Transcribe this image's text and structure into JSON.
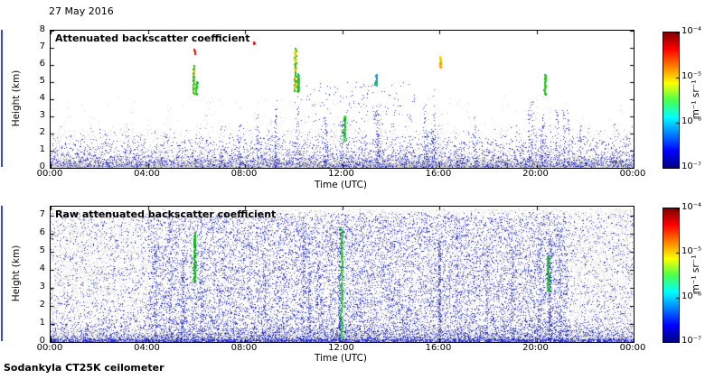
{
  "date_label": "27 May 2016",
  "footer_label": "Sodankyla CT25K ceilometer",
  "colors": {
    "speckle_blue": "#2f38d0",
    "noise_gray": "#c8c8c8",
    "cloud_green": "#19b419",
    "axis_black": "#000000",
    "edge_artifact_blue": "#3a46c8"
  },
  "colormap_stops": [
    {
      "p": 0.0,
      "c": "#000083"
    },
    {
      "p": 0.125,
      "c": "#0000ff"
    },
    {
      "p": 0.375,
      "c": "#00ffff"
    },
    {
      "p": 0.5,
      "c": "#4dff4d"
    },
    {
      "p": 0.625,
      "c": "#ffff00"
    },
    {
      "p": 0.875,
      "c": "#ff0000"
    },
    {
      "p": 1.0,
      "c": "#800000"
    }
  ],
  "chart_data": [
    {
      "type": "scatter",
      "title": "Attenuated backscatter coefficient",
      "xlabel": "Time (UTC)",
      "ylabel": "Height (km)",
      "xlim_hours": [
        0,
        24
      ],
      "x_ticks": [
        "00:00",
        "04:00",
        "08:00",
        "12:00",
        "16:00",
        "20:00",
        "00:00"
      ],
      "ylim_km": [
        0,
        8
      ],
      "y_ticks": [
        0,
        1,
        2,
        3,
        4,
        5,
        6,
        7,
        8
      ],
      "colorbar": {
        "label": "m⁻¹ sr⁻¹",
        "tick_labels": [
          "10⁻⁴",
          "10⁻⁵",
          "10⁻⁶",
          "10⁻⁷"
        ],
        "scale": "log",
        "colormap": "jet"
      },
      "seed": 20160527,
      "layers": [
        {
          "kind": "scatter",
          "n": 9000,
          "t": [
            0,
            24
          ],
          "h": [
            0,
            1.2
          ],
          "dist": "exp",
          "scale": 0.28,
          "colors": [
            "#c8c8c8",
            "#d4d4d4",
            "#bdbdbd"
          ]
        },
        {
          "kind": "scatter",
          "n": 800,
          "t": [
            0,
            24
          ],
          "h": [
            0.8,
            2.3
          ],
          "dist": "uniform",
          "colors": [
            "#cccccc"
          ]
        },
        {
          "kind": "scatter",
          "n": 160,
          "t": [
            0,
            24
          ],
          "h": [
            2.2,
            4.2
          ],
          "dist": "uniform",
          "colors": [
            "#cccccc"
          ]
        },
        {
          "kind": "cols",
          "cols": 24,
          "t": [
            0,
            24
          ],
          "hmax": [
            1.2,
            3.6
          ],
          "per": 22,
          "colors": [
            "#c8c8c8"
          ]
        },
        {
          "kind": "scatter",
          "n": 2800,
          "t": [
            0,
            24
          ],
          "h": [
            0.05,
            2.6
          ],
          "dist": "exp",
          "scale": 0.6,
          "colors": [
            "#2929c8",
            "#3c46dc",
            "#2020aa"
          ]
        },
        {
          "kind": "scatter",
          "n": 600,
          "t": [
            0,
            24
          ],
          "h": [
            0.1,
            1.9
          ],
          "dist": "uniform",
          "colors": [
            "#2c35cf"
          ]
        },
        {
          "kind": "cols",
          "cols": 26,
          "t": [
            7.5,
            21.8
          ],
          "hmax": [
            2.0,
            4.7
          ],
          "per": 26,
          "colors": [
            "#2a30c8",
            "#3a44da"
          ]
        },
        {
          "kind": "scatter",
          "n": 140,
          "t": [
            10,
            15
          ],
          "h": [
            2.5,
            5.0
          ],
          "dist": "uniform",
          "colors": [
            "#2c35cf"
          ]
        }
      ],
      "cloud_streaks": [
        {
          "t_hours": 5.86,
          "h_km": [
            4.35,
            6.05
          ],
          "colors": [
            "#19b419",
            "#8fcc19",
            "#ffd400",
            "#19b419"
          ]
        },
        {
          "t_hours": 5.98,
          "h_km": [
            4.3,
            5.1
          ],
          "colors": [
            "#19b419",
            "#33cc33"
          ]
        },
        {
          "t_hours": 5.9,
          "h_km": [
            6.7,
            6.95
          ],
          "colors": [
            "#d41919"
          ]
        },
        {
          "t_hours": 8.35,
          "h_km": [
            7.25,
            7.42
          ],
          "colors": [
            "#cc1111"
          ]
        },
        {
          "t_hours": 10.04,
          "h_km": [
            4.55,
            7.05
          ],
          "colors": [
            "#2fb419",
            "#c8dc19",
            "#ffc800",
            "#2fb419"
          ]
        },
        {
          "t_hours": 10.17,
          "h_km": [
            4.5,
            5.55
          ],
          "colors": [
            "#2fb419",
            "#19c86e"
          ]
        },
        {
          "t_hours": 12.07,
          "h_km": [
            1.65,
            3.05
          ],
          "colors": [
            "#0fae0f",
            "#2fd42f"
          ]
        },
        {
          "t_hours": 13.37,
          "h_km": [
            4.85,
            5.5
          ],
          "colors": [
            "#19aaaa",
            "#1f7fff",
            "#19c850"
          ]
        },
        {
          "t_hours": 16.02,
          "h_km": [
            5.9,
            6.55
          ],
          "colors": [
            "#ffc800",
            "#ff8c00",
            "#b4d419"
          ]
        },
        {
          "t_hours": 20.33,
          "h_km": [
            4.3,
            5.5
          ],
          "colors": [
            "#19b433",
            "#33cc19"
          ]
        }
      ]
    },
    {
      "type": "scatter",
      "title": "Raw attenuated backscatter coefficient",
      "xlabel": "Time (UTC)",
      "ylabel": "Height (km)",
      "xlim_hours": [
        0,
        24
      ],
      "x_ticks": [
        "00:00",
        "04:00",
        "08:00",
        "12:00",
        "16:00",
        "20:00",
        "00:00"
      ],
      "ylim_km": [
        0,
        7.5
      ],
      "y_ticks": [
        0,
        1,
        2,
        3,
        4,
        5,
        6,
        7
      ],
      "colorbar": {
        "label": "m⁻¹ sr⁻¹",
        "tick_labels": [
          "10⁻⁴",
          "10⁻⁵",
          "10⁻⁶",
          "10⁻⁷"
        ],
        "scale": "log",
        "colormap": "jet"
      },
      "seed": 527,
      "layers": [
        {
          "kind": "scatter",
          "n": 16000,
          "t": [
            0,
            24
          ],
          "h": [
            0,
            7.4
          ],
          "dist": "uniform",
          "colors": [
            "#cfcfcf",
            "#c6c6c6",
            "#d8d8d8"
          ]
        },
        {
          "kind": "scatter",
          "n": 4500,
          "t": [
            0,
            24
          ],
          "h": [
            0,
            1.0
          ],
          "dist": "exp",
          "scale": 0.3,
          "colors": [
            "#c6c6c6"
          ]
        },
        {
          "kind": "scatter",
          "n": 5200,
          "t": [
            0,
            24
          ],
          "h": [
            0.05,
            7.2
          ],
          "dist": "uniform",
          "colors": [
            "#2f38d0",
            "#3c46dc",
            "#2424b0"
          ]
        },
        {
          "kind": "scatter",
          "n": 6200,
          "t": [
            4.0,
            21.2
          ],
          "h": [
            0.05,
            7.0
          ],
          "dist": "uniform",
          "colors": [
            "#2f38d0",
            "#3c46dc"
          ]
        },
        {
          "kind": "scatter",
          "n": 2600,
          "t": [
            0,
            24
          ],
          "h": [
            0.02,
            2.6
          ],
          "dist": "exp",
          "scale": 0.55,
          "colors": [
            "#2830c0"
          ]
        },
        {
          "kind": "scatter",
          "n": 1600,
          "t": [
            0,
            24
          ],
          "h": [
            0,
            0.18
          ],
          "dist": "uniform",
          "colors": [
            "#2830c0",
            "#3a3ad0"
          ]
        },
        {
          "kind": "cols",
          "cols": 14,
          "t": [
            4,
            22
          ],
          "hmax": [
            4.5,
            7.0
          ],
          "per": 60,
          "colors": [
            "#2f38d0"
          ]
        },
        {
          "kind": "cols",
          "times": [
            11.9,
            16.0,
            20.55
          ],
          "t": [
            0,
            24
          ],
          "hmax": [
            5.5,
            6.8
          ],
          "per": 160,
          "colors": [
            "#2830c8"
          ]
        }
      ],
      "cloud_streaks": [
        {
          "t_hours": 5.9,
          "h_km": [
            3.4,
            6.15
          ],
          "colors": [
            "#19a833",
            "#11bb11"
          ]
        },
        {
          "t_hours": 11.96,
          "h_km": [
            0.3,
            6.35
          ],
          "colors": [
            "#11c411",
            "#2ad42a"
          ]
        },
        {
          "t_hours": 20.45,
          "h_km": [
            2.85,
            4.8
          ],
          "colors": [
            "#19b433"
          ]
        }
      ]
    }
  ]
}
